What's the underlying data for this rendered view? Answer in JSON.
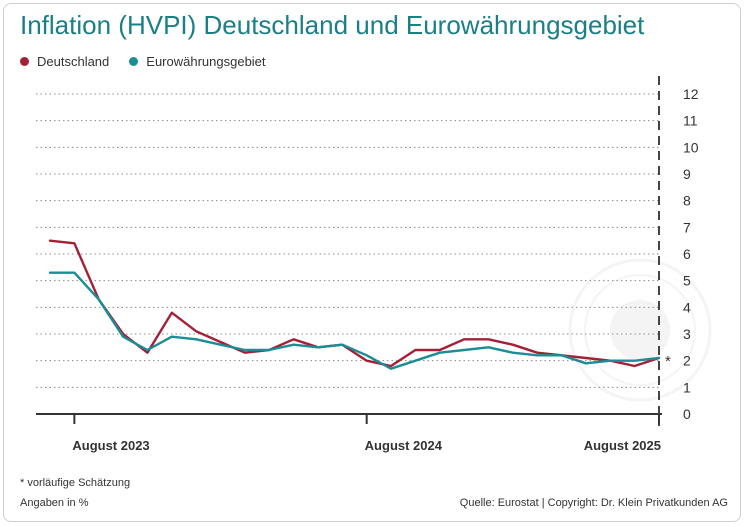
{
  "colors": {
    "deutschland": "#a51f36",
    "euro": "#1a8e94",
    "title": "#1a7f86",
    "grid": "#888888"
  },
  "chart_data": {
    "type": "line",
    "title": "Inflation (HVPI) Deutschland und Eurowährungsgebiet",
    "x": [
      "2023-07",
      "2023-08",
      "2023-09",
      "2023-10",
      "2023-11",
      "2023-12",
      "2024-01",
      "2024-02",
      "2024-03",
      "2024-04",
      "2024-05",
      "2024-06",
      "2024-07",
      "2024-08",
      "2024-09",
      "2024-10",
      "2024-11",
      "2024-12",
      "2025-01",
      "2025-02",
      "2025-03",
      "2025-04",
      "2025-05",
      "2025-06",
      "2025-07",
      "2025-08"
    ],
    "x_tick_labels": [
      {
        "x": "2023-08",
        "label": "August 2023"
      },
      {
        "x": "2024-08",
        "label": "August 2024"
      },
      {
        "x": "2025-08",
        "label": "August 2025"
      }
    ],
    "series": [
      {
        "name": "Deutschland",
        "color": "#a51f36",
        "values": [
          6.5,
          6.4,
          4.3,
          3.0,
          2.3,
          3.8,
          3.1,
          2.7,
          2.3,
          2.4,
          2.8,
          2.5,
          2.6,
          2.0,
          1.8,
          2.4,
          2.4,
          2.8,
          2.8,
          2.6,
          2.3,
          2.2,
          2.1,
          2.0,
          1.8,
          2.1
        ]
      },
      {
        "name": "Eurowährungsgebiet",
        "color": "#1a8e94",
        "values": [
          5.3,
          5.3,
          4.3,
          2.9,
          2.4,
          2.9,
          2.8,
          2.6,
          2.4,
          2.4,
          2.6,
          2.5,
          2.6,
          2.2,
          1.7,
          2.0,
          2.3,
          2.4,
          2.5,
          2.3,
          2.2,
          2.2,
          1.9,
          2.0,
          2.0,
          2.1
        ]
      }
    ],
    "ylim": [
      0,
      12
    ],
    "yticks": [
      "0",
      "1",
      "2",
      "3",
      "4",
      "5",
      "6",
      "7",
      "8",
      "9",
      "10",
      "11",
      "12"
    ],
    "estimate_marker": "*",
    "grid": true,
    "legend_position": "top-left"
  },
  "notes": {
    "footnote": "*  vorläufige Schätzung",
    "unit": "Angaben in %",
    "source": "Quelle: Eurostat | Copyright: Dr. Klein Privatkunden AG"
  }
}
